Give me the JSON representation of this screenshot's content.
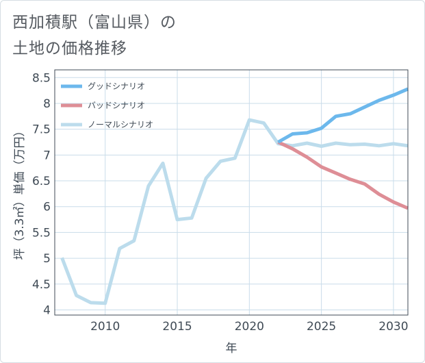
{
  "title_lines": [
    "西加積駅（富山県）の",
    "土地の価格推移"
  ],
  "chart_data": {
    "type": "line",
    "title": "西加積駅（富山県）の土地の価格推移",
    "xlabel": "年",
    "ylabel": "坪（3.3㎡）単価（万円）",
    "xlim": [
      2006.5,
      2031
    ],
    "ylim": [
      3.9,
      8.65
    ],
    "xticks": [
      2010,
      2015,
      2020,
      2025,
      2030
    ],
    "xtick_labels": [
      "2010",
      "2015",
      "2020",
      "2025",
      "2030"
    ],
    "yticks": [
      4,
      4.5,
      5,
      5.5,
      6,
      6.5,
      7,
      7.5,
      8,
      8.5
    ],
    "ytick_labels": [
      "4",
      "4.5",
      "5",
      "5.5",
      "6",
      "6.5",
      "7",
      "7.5",
      "8",
      "8.5"
    ],
    "grid": true,
    "legend_position": "top-left",
    "series": [
      {
        "name": "グッドシナリオ",
        "color": "#6cb8ec",
        "x": [
          2022,
          2023,
          2024,
          2025,
          2026,
          2027,
          2028,
          2029,
          2030,
          2031
        ],
        "y": [
          7.25,
          7.41,
          7.43,
          7.52,
          7.75,
          7.8,
          7.93,
          8.06,
          8.16,
          8.28
        ]
      },
      {
        "name": "バッドシナリオ",
        "color": "#de8e96",
        "x": [
          2022,
          2023,
          2024,
          2025,
          2026,
          2027,
          2028,
          2029,
          2030,
          2031
        ],
        "y": [
          7.25,
          7.12,
          6.96,
          6.77,
          6.65,
          6.53,
          6.44,
          6.24,
          6.09,
          5.97
        ]
      },
      {
        "name": "ノーマルシナリオ",
        "color": "#bcdcec",
        "x": [
          2007,
          2008,
          2009,
          2010,
          2011,
          2012,
          2013,
          2014,
          2015,
          2016,
          2017,
          2018,
          2019,
          2020,
          2021,
          2022,
          2023,
          2024,
          2025,
          2026,
          2027,
          2028,
          2029,
          2030,
          2031
        ],
        "y": [
          5.01,
          4.28,
          4.14,
          4.13,
          5.19,
          5.34,
          6.4,
          6.84,
          5.75,
          5.78,
          6.55,
          6.88,
          6.94,
          7.68,
          7.62,
          7.22,
          7.18,
          7.23,
          7.17,
          7.23,
          7.2,
          7.21,
          7.18,
          7.22,
          7.18
        ]
      }
    ]
  }
}
